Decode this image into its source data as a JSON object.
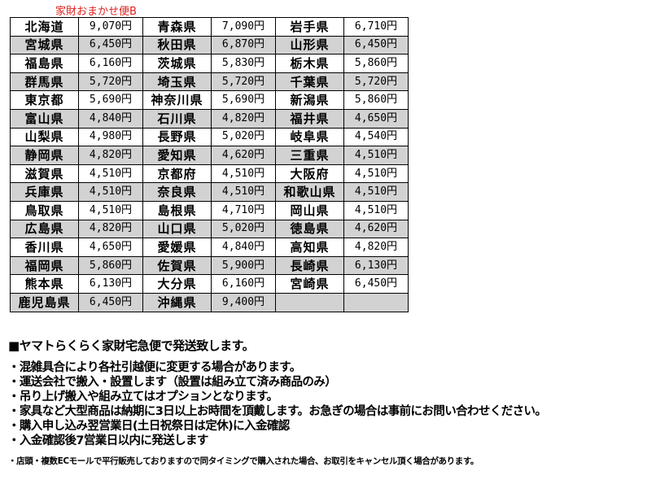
{
  "title": "家財おまかせ便B",
  "rows": [
    [
      [
        "北海道",
        "9,070円"
      ],
      [
        "青森県",
        "7,090円"
      ],
      [
        "岩手県",
        "6,710円"
      ]
    ],
    [
      [
        "宮城県",
        "6,450円"
      ],
      [
        "秋田県",
        "6,870円"
      ],
      [
        "山形県",
        "6,450円"
      ]
    ],
    [
      [
        "福島県",
        "6,160円"
      ],
      [
        "茨城県",
        "5,830円"
      ],
      [
        "栃木県",
        "5,860円"
      ]
    ],
    [
      [
        "群馬県",
        "5,720円"
      ],
      [
        "埼玉県",
        "5,720円"
      ],
      [
        "千葉県",
        "5,720円"
      ]
    ],
    [
      [
        "東京都",
        "5,690円"
      ],
      [
        "神奈川県",
        "5,690円"
      ],
      [
        "新潟県",
        "5,860円"
      ]
    ],
    [
      [
        "富山県",
        "4,840円"
      ],
      [
        "石川県",
        "4,820円"
      ],
      [
        "福井県",
        "4,650円"
      ]
    ],
    [
      [
        "山梨県",
        "4,980円"
      ],
      [
        "長野県",
        "5,020円"
      ],
      [
        "岐阜県",
        "4,540円"
      ]
    ],
    [
      [
        "静岡県",
        "4,820円"
      ],
      [
        "愛知県",
        "4,620円"
      ],
      [
        "三重県",
        "4,510円"
      ]
    ],
    [
      [
        "滋賀県",
        "4,510円"
      ],
      [
        "京都府",
        "4,510円"
      ],
      [
        "大阪府",
        "4,510円"
      ]
    ],
    [
      [
        "兵庫県",
        "4,510円"
      ],
      [
        "奈良県",
        "4,510円"
      ],
      [
        "和歌山県",
        "4,510円"
      ]
    ],
    [
      [
        "鳥取県",
        "4,510円"
      ],
      [
        "島根県",
        "4,710円"
      ],
      [
        "岡山県",
        "4,510円"
      ]
    ],
    [
      [
        "広島県",
        "4,820円"
      ],
      [
        "山口県",
        "5,020円"
      ],
      [
        "徳島県",
        "4,620円"
      ]
    ],
    [
      [
        "香川県",
        "4,650円"
      ],
      [
        "愛媛県",
        "4,840円"
      ],
      [
        "高知県",
        "4,820円"
      ]
    ],
    [
      [
        "福岡県",
        "5,860円"
      ],
      [
        "佐賀県",
        "5,900円"
      ],
      [
        "長崎県",
        "6,130円"
      ]
    ],
    [
      [
        "熊本県",
        "6,130円"
      ],
      [
        "大分県",
        "6,160円"
      ],
      [
        "宮崎県",
        "6,450円"
      ]
    ],
    [
      [
        "鹿児島県",
        "6,450円"
      ],
      [
        "沖縄県",
        "9,400円"
      ],
      [
        "",
        ""
      ]
    ]
  ],
  "notes": {
    "heading": "■ヤマトらくらく家財宅急便で発送致します。",
    "lines": [
      "・混雑具合により各社引越便に変更する場合があります。",
      "・運送会社で搬入・設置します（設置は組み立て済み商品のみ）",
      "・吊り上げ搬入や組み立てはオプションとなります。",
      "・家具など大型商品は納期に3日以上お時間を頂戴します。お急ぎの場合は事前にお問い合わせください。",
      "・購入申し込み翌営業日(土日祝祭日は定休)に入金確認",
      "・入金確認後7営業日以内に発送します"
    ],
    "small": "・店頭・複数ECモールで平行販売しておりますので同タイミングで購入された場合、お取引をキャンセル頂く場合があります。"
  },
  "colors": {
    "title": "#e0201c",
    "shaded_row": "#d2d2d2"
  }
}
